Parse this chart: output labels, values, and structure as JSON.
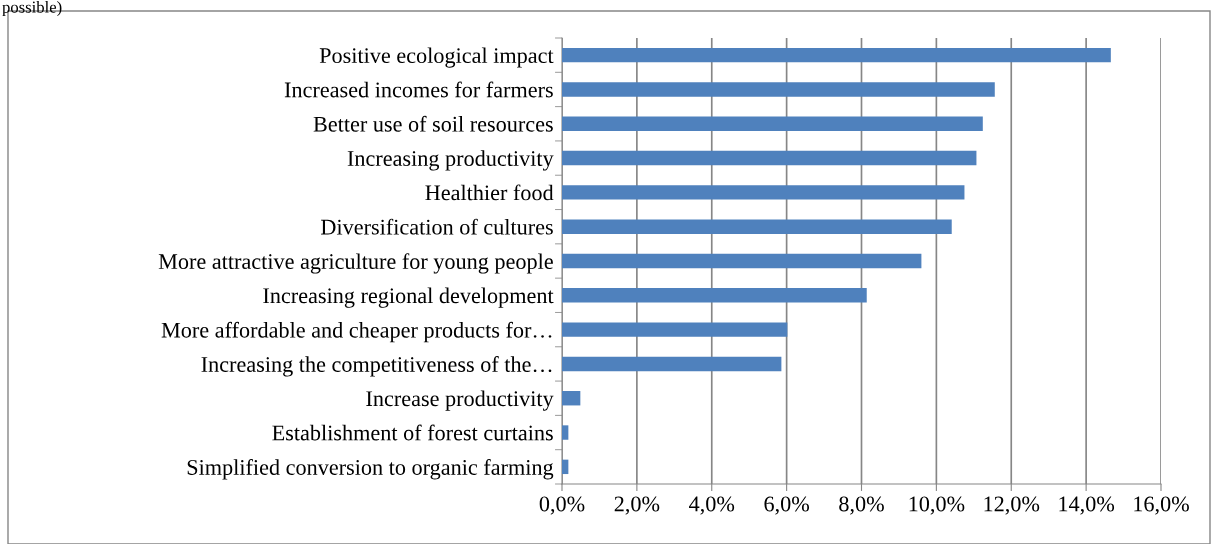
{
  "chart_data": {
    "type": "bar",
    "orientation": "horizontal",
    "categories": [
      "Positive ecological impact",
      "Increased incomes for farmers",
      "Better use of soil resources",
      "Increasing productivity",
      "Healthier food",
      "Diversification of cultures",
      "More attractive agriculture for young people",
      "Increasing regional development",
      "More affordable and cheaper products for…",
      "Increasing the competitiveness of the…",
      "Increase productivity",
      "Establishment of forest curtains",
      "Simplified conversion to organic farming"
    ],
    "values": [
      14.66,
      11.56,
      11.24,
      11.07,
      10.75,
      10.41,
      9.6,
      8.14,
      6.02,
      5.86,
      0.49,
      0.17,
      0.17
    ],
    "color": "#4f81bd",
    "xlim": [
      0,
      16
    ],
    "xticks": [
      {
        "value": 0,
        "label": "0,0%"
      },
      {
        "value": 2,
        "label": "2,0%"
      },
      {
        "value": 4,
        "label": "4,0%"
      },
      {
        "value": 6,
        "label": "6,0%"
      },
      {
        "value": 8,
        "label": "8,0%"
      },
      {
        "value": 10,
        "label": "10,0%"
      },
      {
        "value": 12,
        "label": "12,0%"
      },
      {
        "value": 14,
        "label": "14,0%"
      },
      {
        "value": 16,
        "label": "16,0%"
      }
    ],
    "grid": "x",
    "annotations": [
      "possible)"
    ]
  }
}
